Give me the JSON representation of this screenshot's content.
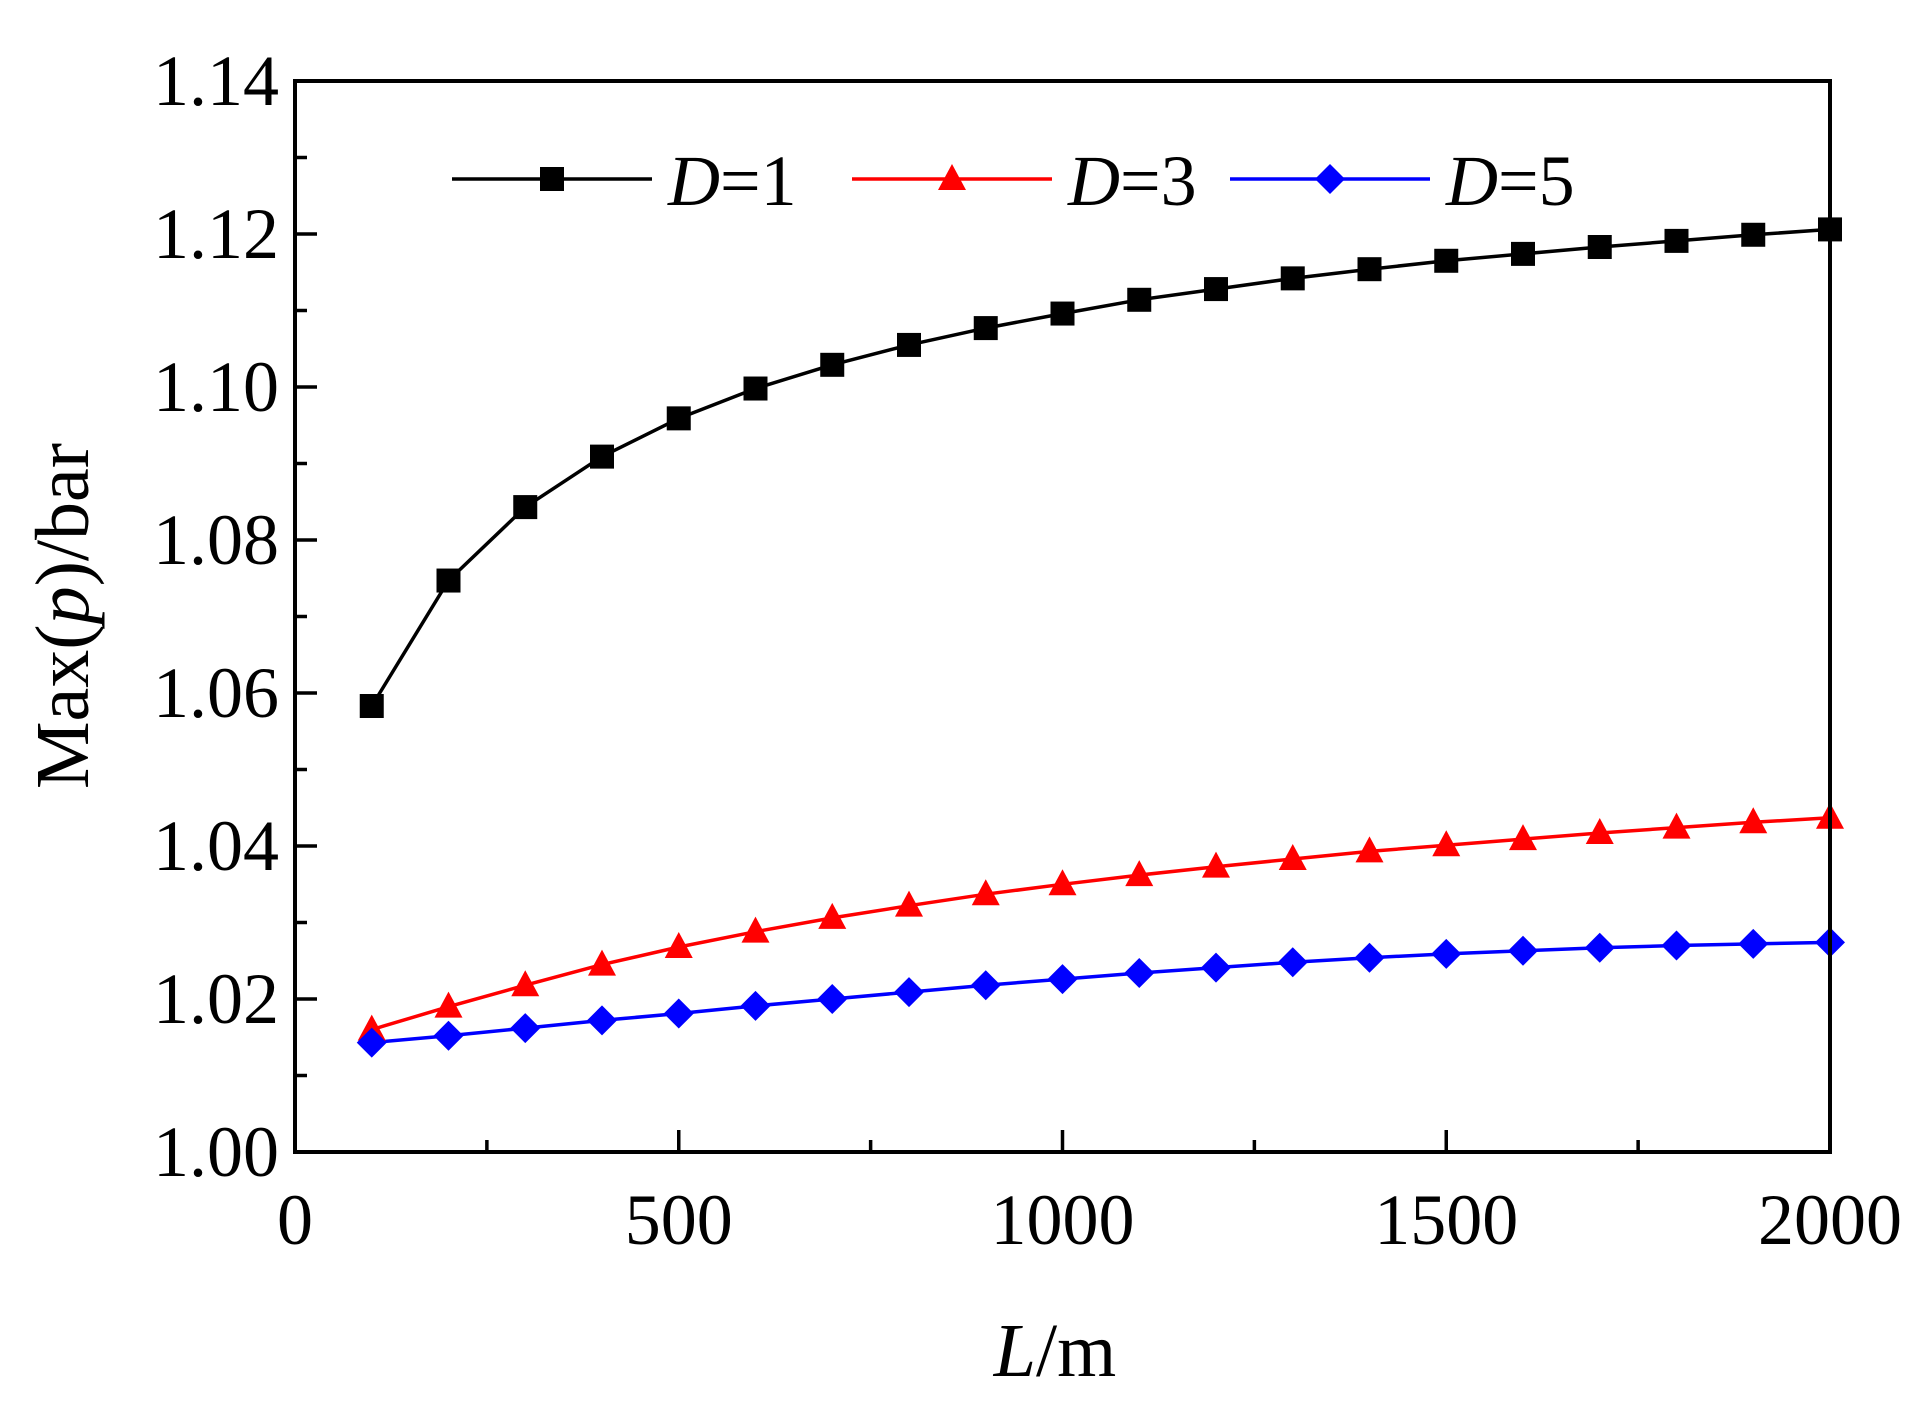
{
  "chart_data": {
    "type": "line",
    "xlabel_italic": "L",
    "xlabel_rest": "/m",
    "ylabel_pre": "Max(",
    "ylabel_italic": "p",
    "ylabel_post": ")/bar",
    "xlim": [
      0,
      2000
    ],
    "ylim": [
      1.0,
      1.14
    ],
    "x_major_ticks": [
      0,
      500,
      1000,
      1500,
      2000
    ],
    "x_tick_labels": [
      "0",
      "500",
      "1000",
      "1500",
      "2000"
    ],
    "y_major_ticks": [
      1.0,
      1.02,
      1.04,
      1.06,
      1.08,
      1.1,
      1.12,
      1.14
    ],
    "y_tick_labels": [
      "1.00",
      "1.02",
      "1.04",
      "1.06",
      "1.08",
      "1.10",
      "1.12",
      "1.14"
    ],
    "grid": false,
    "legend_position": "top",
    "x": [
      100,
      200,
      300,
      400,
      500,
      600,
      700,
      800,
      900,
      1000,
      1100,
      1200,
      1300,
      1400,
      1500,
      1600,
      1700,
      1800,
      1900,
      2000
    ],
    "series": [
      {
        "name_italic": "D",
        "name_rest": "=1",
        "color": "#000000",
        "marker": "square",
        "values": [
          1.0583,
          1.0747,
          1.0843,
          1.0909,
          1.0959,
          1.0998,
          1.1029,
          1.1055,
          1.1077,
          1.1096,
          1.1114,
          1.1128,
          1.1142,
          1.1154,
          1.1165,
          1.1174,
          1.1183,
          1.1191,
          1.1199,
          1.1206
        ]
      },
      {
        "name_italic": "D",
        "name_rest": "=3",
        "color": "#ff0000",
        "marker": "triangle",
        "values": [
          1.016,
          1.019,
          1.0218,
          1.0245,
          1.0268,
          1.0288,
          1.0306,
          1.0322,
          1.0337,
          1.035,
          1.0362,
          1.0373,
          1.0383,
          1.0393,
          1.0401,
          1.0409,
          1.0417,
          1.0424,
          1.0431,
          1.0437
        ]
      },
      {
        "name_italic": "D",
        "name_rest": "=5",
        "color": "#0000ff",
        "marker": "diamond",
        "values": [
          1.0143,
          1.0152,
          1.0162,
          1.0172,
          1.0181,
          1.0191,
          1.02,
          1.0209,
          1.0218,
          1.0226,
          1.0234,
          1.0241,
          1.0248,
          1.0254,
          1.0259,
          1.0263,
          1.0267,
          1.027,
          1.0272,
          1.0274
        ]
      }
    ]
  }
}
